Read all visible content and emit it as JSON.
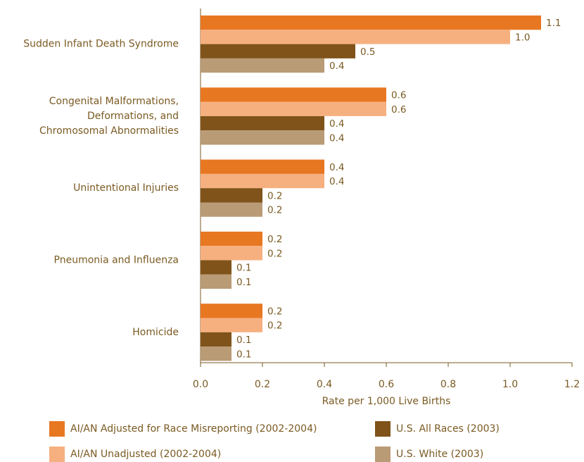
{
  "chart_data": {
    "type": "hbar",
    "xlabel": "Rate per 1,000 Live Births",
    "categories": [
      "Sudden Infant Death Syndrome",
      "Congenital Malformations,\nDeformations, and\nChromosomal Abnormalities",
      "Unintentional Injuries",
      "Pneumonia and Influenza",
      "Homicide"
    ],
    "series": [
      {
        "name": "AI/AN Adjusted for Race Misreporting (2002-2004)",
        "color": "#e87722",
        "values": [
          1.1,
          0.6,
          0.4,
          0.2,
          0.2
        ],
        "value_labels": [
          "1.1",
          "0.6",
          "0.4",
          "0.2",
          "0.2"
        ]
      },
      {
        "name": "AI/AN Unadjusted (2002-2004)",
        "color": "#f6b080",
        "values": [
          1.0,
          0.6,
          0.4,
          0.2,
          0.2
        ],
        "value_labels": [
          "1.0",
          "0.6",
          "0.4",
          "0.2",
          "0.2"
        ]
      },
      {
        "name": "U.S. All Races (2003)",
        "color": "#7f531a",
        "values": [
          0.5,
          0.4,
          0.2,
          0.1,
          0.1
        ],
        "value_labels": [
          "0.5",
          "0.4",
          "0.2",
          "0.1",
          "0.1"
        ]
      },
      {
        "name": "U.S. White (2003)",
        "color": "#b99b76",
        "values": [
          0.4,
          0.4,
          0.2,
          0.1,
          0.1
        ],
        "value_labels": [
          "0.4",
          "0.4",
          "0.2",
          "0.1",
          "0.1"
        ]
      }
    ],
    "xlim": [
      0,
      1.2
    ],
    "xticks": [
      {
        "value": 0,
        "label": "0.0"
      },
      0.2,
      0.4,
      0.6,
      0.8,
      {
        "value": 1,
        "label": "1.0"
      },
      1.2
    ],
    "grid": false
  }
}
